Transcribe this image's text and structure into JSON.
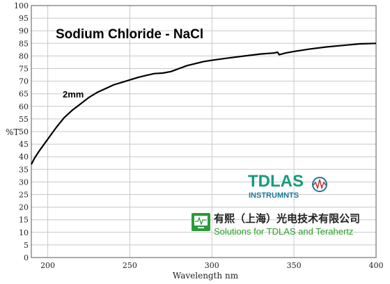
{
  "chart_data": {
    "type": "line",
    "title": "Sodium Chloride - NaCl",
    "xlabel": "Wavelength nm",
    "ylabel": "%T",
    "xlim": [
      190,
      400
    ],
    "ylim": [
      0,
      100
    ],
    "x_ticks": [
      200,
      250,
      300,
      350,
      400
    ],
    "y_ticks": [
      0,
      5,
      10,
      15,
      20,
      25,
      30,
      35,
      40,
      45,
      50,
      55,
      60,
      65,
      70,
      75,
      80,
      85,
      90,
      95,
      100
    ],
    "grid": true,
    "annotation": "2mm",
    "series": [
      {
        "x": [
          190,
          192,
          195,
          200,
          205,
          210,
          215,
          220,
          225,
          230,
          235,
          240,
          245,
          250,
          255,
          260,
          265,
          270,
          275,
          280,
          285,
          290,
          295,
          300,
          310,
          320,
          330,
          338,
          340,
          341,
          345,
          350,
          360,
          370,
          380,
          390,
          400
        ],
        "values": [
          37,
          39.5,
          42.5,
          47,
          51.5,
          55.5,
          58.5,
          61,
          63.5,
          65.5,
          67,
          68.5,
          69.5,
          70.5,
          71.5,
          72.3,
          73,
          73.2,
          73.8,
          75,
          76.2,
          77,
          77.8,
          78.3,
          79.2,
          80,
          80.8,
          81.2,
          81.5,
          80.5,
          81.2,
          81.8,
          82.8,
          83.6,
          84.2,
          84.8,
          85
        ]
      }
    ]
  },
  "watermark": {
    "brand": "TDLAS",
    "brand_sub": "INSTRUMNTS",
    "company": "有熙（上海）光电技术有限公司",
    "tagline": "Solutions for TDLAS and Terahertz",
    "brand_color": "#1a9a7a",
    "tagline_color": "#2aa02a",
    "company_color": "#b03030"
  }
}
